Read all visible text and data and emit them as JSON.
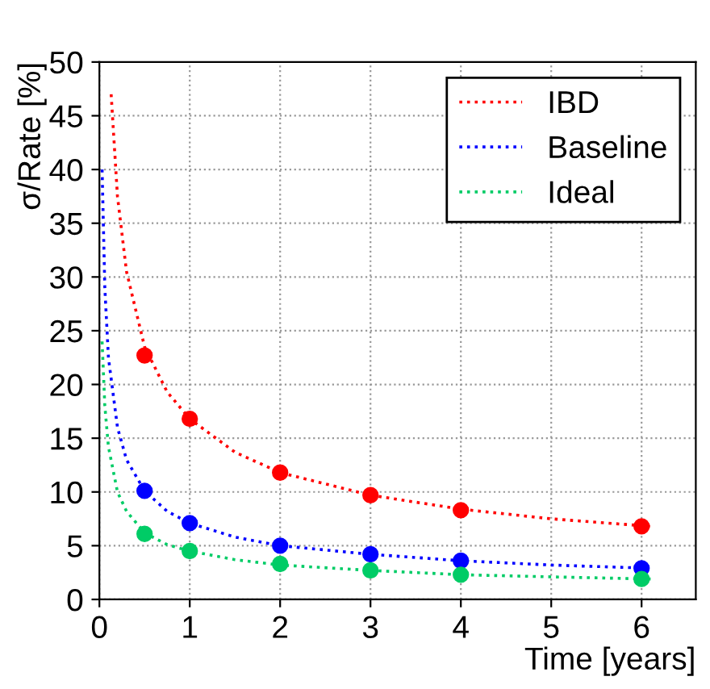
{
  "chart_data": {
    "type": "line",
    "xlabel": "Time [years]",
    "ylabel": "σ/Rate [%]",
    "xlim": [
      0,
      6.6
    ],
    "ylim": [
      0,
      50
    ],
    "xticks": [
      0,
      1,
      2,
      3,
      4,
      5,
      6
    ],
    "yticks": [
      0,
      5,
      10,
      15,
      20,
      25,
      30,
      35,
      40,
      45,
      50
    ],
    "grid": true,
    "legend": "top right",
    "line_style": "dotted",
    "series": [
      {
        "name": "IBD",
        "color": "#ff0000",
        "x": [
          0.13,
          0.2,
          0.3,
          0.5,
          0.75,
          1,
          1.5,
          2,
          3,
          4,
          5,
          6.1
        ],
        "values": [
          47,
          37.5,
          30.5,
          23.5,
          19.3,
          16.8,
          13.7,
          11.8,
          9.7,
          8.4,
          7.5,
          6.8
        ]
      },
      {
        "name": "Baseline",
        "color": "#0000ff",
        "x": [
          0.03,
          0.06,
          0.1,
          0.2,
          0.3,
          0.5,
          0.75,
          1,
          1.5,
          2,
          3,
          4,
          5,
          6.1
        ],
        "values": [
          40,
          29,
          22.5,
          16,
          13,
          10.1,
          8.2,
          7.1,
          5.8,
          5.0,
          4.2,
          3.6,
          3.2,
          2.9
        ]
      },
      {
        "name": "Ideal",
        "color": "#00cc66",
        "x": [
          0.03,
          0.06,
          0.1,
          0.2,
          0.3,
          0.5,
          0.75,
          1,
          1.5,
          2,
          3,
          4,
          5,
          6.1
        ],
        "values": [
          24,
          18,
          14.2,
          10,
          8.2,
          6.2,
          5.1,
          4.5,
          3.7,
          3.2,
          2.7,
          2.3,
          2.1,
          1.9
        ]
      },
      {
        "color": "#ff0000",
        "type": "scatter",
        "marker": "circle",
        "x": [
          0.5,
          1,
          2,
          3,
          4,
          6
        ],
        "values": [
          22.7,
          16.8,
          11.8,
          9.7,
          8.3,
          6.8
        ]
      },
      {
        "color": "#0000ff",
        "type": "scatter",
        "marker": "circle",
        "x": [
          0.5,
          1,
          2,
          3,
          4,
          6
        ],
        "values": [
          10.1,
          7.1,
          5.0,
          4.2,
          3.6,
          2.9
        ]
      },
      {
        "color": "#00cc66",
        "type": "scatter",
        "marker": "circle",
        "x": [
          0.5,
          1,
          2,
          3,
          4,
          6
        ],
        "values": [
          6.1,
          4.5,
          3.3,
          2.7,
          2.3,
          1.9
        ]
      }
    ]
  }
}
